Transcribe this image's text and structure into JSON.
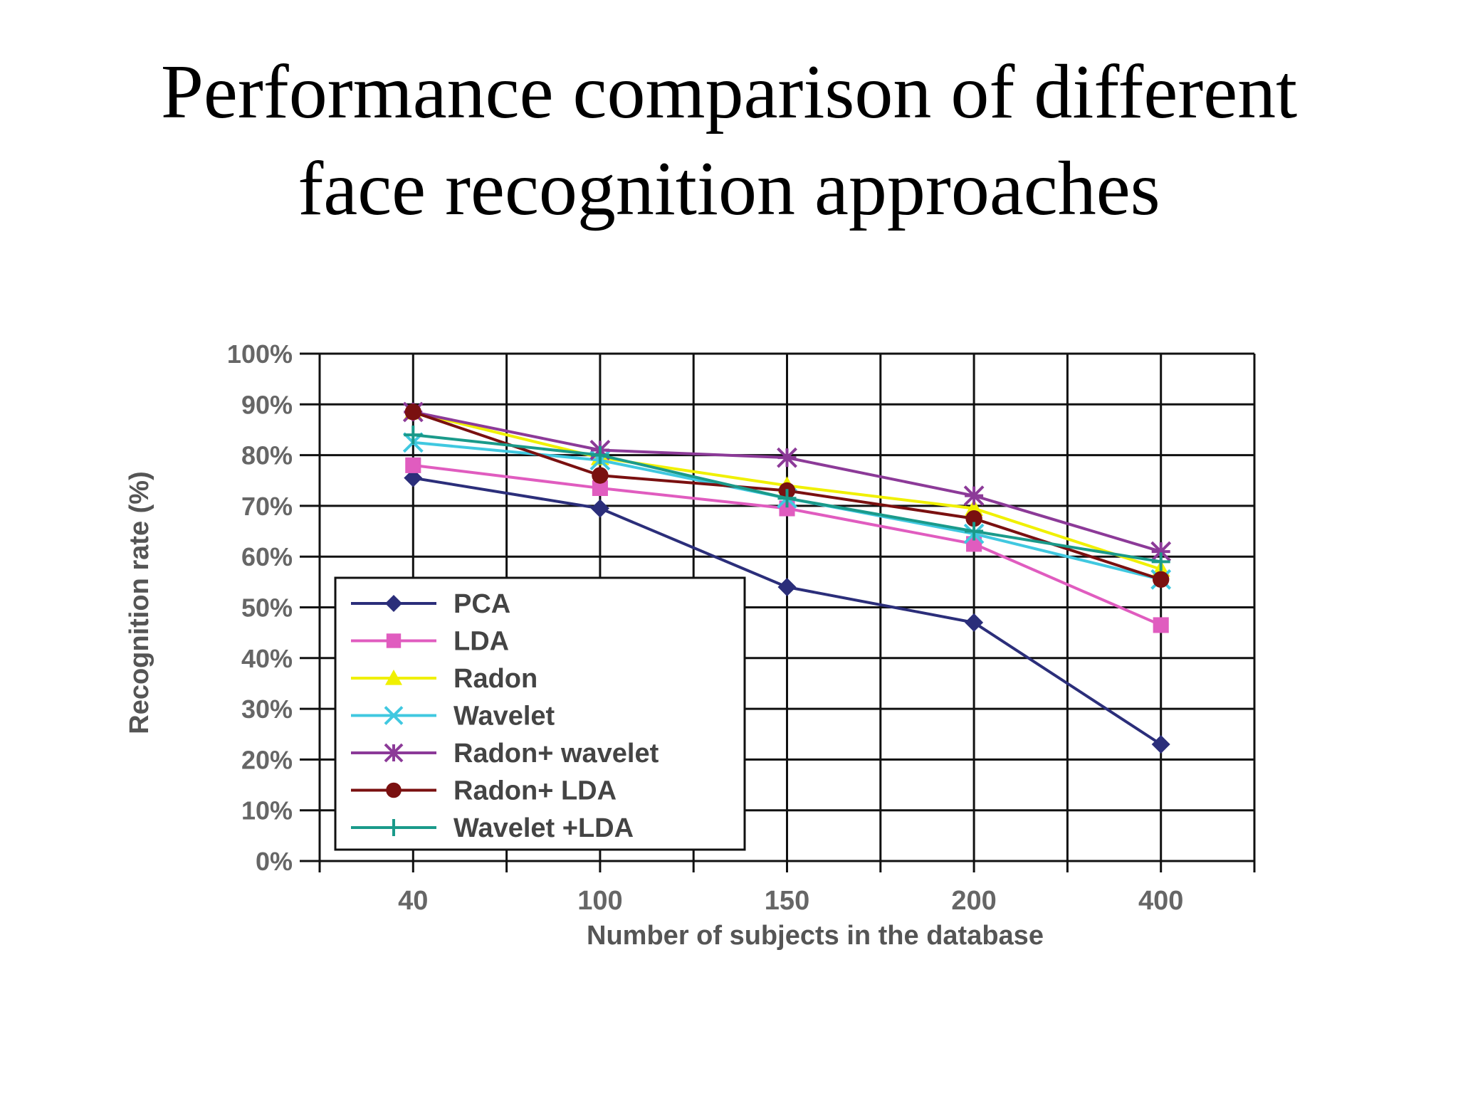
{
  "slide": {
    "title_line1": "Performance comparison of different",
    "title_line2": "face recognition approaches"
  },
  "chart_data": {
    "type": "line",
    "title": "",
    "xlabel": "Number of subjects in the database",
    "ylabel": "Recognition rate (%)",
    "categories": [
      "40",
      "100",
      "150",
      "200",
      "400"
    ],
    "ylim": [
      0,
      100
    ],
    "y_ticks": [
      "0%",
      "10%",
      "20%",
      "30%",
      "40%",
      "50%",
      "60%",
      "70%",
      "80%",
      "90%",
      "100%"
    ],
    "grid": true,
    "legend_position": "bottom-left",
    "series": [
      {
        "name": "PCA",
        "color": "#2b2e7a",
        "marker": "diamond",
        "values": [
          75.5,
          69.5,
          54,
          47,
          23
        ]
      },
      {
        "name": "LDA",
        "color": "#e05cbf",
        "marker": "square",
        "values": [
          78,
          73.5,
          69.5,
          62.5,
          46.5
        ]
      },
      {
        "name": "Radon",
        "color": "#f0f000",
        "marker": "triangle",
        "values": [
          88.5,
          79.5,
          74,
          69.5,
          57.5
        ]
      },
      {
        "name": "Wavelet",
        "color": "#40c8e0",
        "marker": "x",
        "values": [
          82.5,
          79,
          71.5,
          64.5,
          55.5
        ]
      },
      {
        "name": "Radon+ wavelet",
        "color": "#8c3a98",
        "marker": "star",
        "values": [
          88.5,
          81,
          79.5,
          72,
          61
        ]
      },
      {
        "name": "Radon+ LDA",
        "color": "#7a1010",
        "marker": "circle",
        "values": [
          88.5,
          76,
          73,
          67.5,
          55.5
        ]
      },
      {
        "name": "Wavelet +LDA",
        "color": "#1a9a8a",
        "marker": "plus",
        "values": [
          84,
          80,
          71.5,
          65,
          59
        ]
      }
    ]
  }
}
